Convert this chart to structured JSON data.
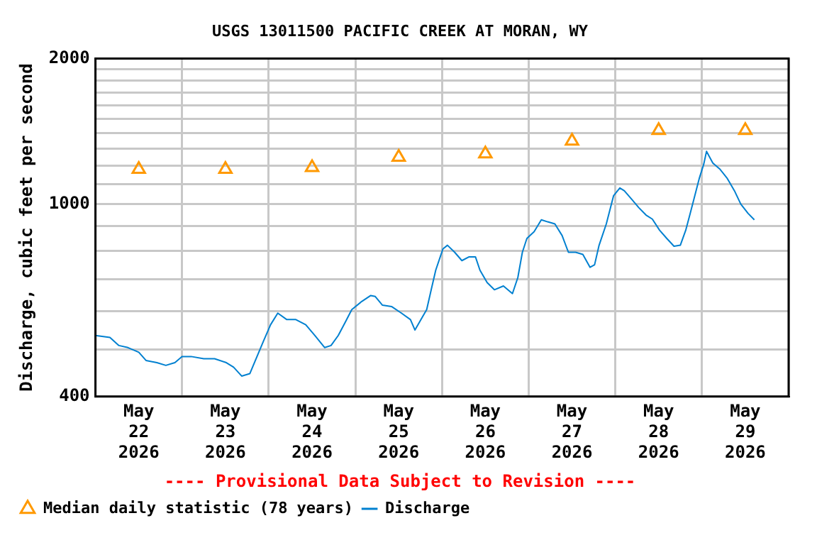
{
  "chart_data": {
    "type": "line",
    "title": "USGS 13011500 PACIFIC CREEK AT MORAN, WY",
    "ylabel": "Discharge, cubic feet per second",
    "annotations": [
      "---- Provisional Data Subject to Revision ----"
    ],
    "log": true,
    "grid": true,
    "legend": "bottom",
    "xlim": [
      "2026-05-22",
      "2026-05-30"
    ],
    "xticks": [
      {
        "value": "2026-05-22",
        "label": null
      },
      {
        "value": "2026-05-22T12:00",
        "label": "May 22 2026"
      },
      {
        "value": "2026-05-23",
        "label": null
      },
      {
        "value": "2026-05-23T12:00",
        "label": "May 23 2026"
      },
      {
        "value": "2026-05-24",
        "label": null
      },
      {
        "value": "2026-05-24T12:00",
        "label": "May 24 2026"
      },
      {
        "value": "2026-05-25",
        "label": null
      },
      {
        "value": "2026-05-25T12:00",
        "label": "May 25 2026"
      },
      {
        "value": "2026-05-26",
        "label": null
      },
      {
        "value": "2026-05-26T12:00",
        "label": "May 26 2026"
      },
      {
        "value": "2026-05-27",
        "label": null
      },
      {
        "value": "2026-05-27T12:00",
        "label": "May 27 2026"
      },
      {
        "value": "2026-05-28",
        "label": null
      },
      {
        "value": "2026-05-28T12:00",
        "label": "May 28 2026"
      },
      {
        "value": "2026-05-29",
        "label": null
      },
      {
        "value": "2026-05-29T12:00",
        "label": "May 29 2026"
      },
      {
        "value": "2026-05-30",
        "label": null
      }
    ],
    "ylim": [
      400,
      2000
    ],
    "yticks": [
      400,
      {
        "value": 500,
        "label": null
      },
      {
        "value": 600,
        "label": null
      },
      {
        "value": 700,
        "label": null
      },
      {
        "value": 800,
        "label": null
      },
      {
        "value": 900,
        "label": null
      },
      1000,
      {
        "value": 1100,
        "label": null
      },
      {
        "value": 1200,
        "label": null
      },
      {
        "value": 1300,
        "label": null
      },
      {
        "value": 1400,
        "label": null
      },
      {
        "value": 1500,
        "label": null
      },
      {
        "value": 1600,
        "label": null
      },
      {
        "value": 1700,
        "label": null
      },
      {
        "value": 1800,
        "label": null
      },
      {
        "value": 1900,
        "label": null
      },
      2000
    ],
    "series": [
      {
        "name": "Median daily statistic (78 years)",
        "type": "scatter",
        "marker": "triangle",
        "color": "#ff9900",
        "x": [
          "2026-05-22T12:00",
          "2026-05-23T12:00",
          "2026-05-24T12:00",
          "2026-05-25T12:00",
          "2026-05-26T12:00",
          "2026-05-27T12:00",
          "2026-05-28T12:00",
          "2026-05-29T12:00"
        ],
        "values": [
          1180,
          1180,
          1190,
          1250,
          1270,
          1350,
          1420,
          1420
        ]
      },
      {
        "name": "Discharge",
        "marker": "none",
        "color": "#0080d0",
        "x": [
          "2026-05-22T00:00",
          "2026-05-22T04:00",
          "2026-05-22T06:30",
          "2026-05-22T09:00",
          "2026-05-22T12:00",
          "2026-05-22T14:00",
          "2026-05-22T17:00",
          "2026-05-22T19:30",
          "2026-05-22T22:00",
          "2026-05-23T00:00",
          "2026-05-23T02:30",
          "2026-05-23T06:00",
          "2026-05-23T09:00",
          "2026-05-23T12:15",
          "2026-05-23T14:15",
          "2026-05-23T16:30",
          "2026-05-23T18:45",
          "2026-05-23T20:45",
          "2026-05-23T22:30",
          "2026-05-24T00:30",
          "2026-05-24T02:30",
          "2026-05-24T05:00",
          "2026-05-24T07:30",
          "2026-05-24T10:15",
          "2026-05-24T12:45",
          "2026-05-24T15:30",
          "2026-05-24T17:15",
          "2026-05-24T19:15",
          "2026-05-24T21:15",
          "2026-05-24T23:00",
          "2026-05-25T01:45",
          "2026-05-25T04:15",
          "2026-05-25T05:30",
          "2026-05-25T07:30",
          "2026-05-25T10:00",
          "2026-05-25T12:45",
          "2026-05-25T15:15",
          "2026-05-25T16:30",
          "2026-05-25T18:30",
          "2026-05-25T19:45",
          "2026-05-25T21:00",
          "2026-05-25T22:15",
          "2026-05-26T00:15",
          "2026-05-26T01:30",
          "2026-05-26T03:30",
          "2026-05-26T05:30",
          "2026-05-26T07:30",
          "2026-05-26T09:15",
          "2026-05-26T10:30",
          "2026-05-26T12:30",
          "2026-05-26T14:30",
          "2026-05-26T17:00",
          "2026-05-26T19:30",
          "2026-05-26T21:00",
          "2026-05-26T22:15",
          "2026-05-26T23:30",
          "2026-05-27T01:30",
          "2026-05-27T03:30",
          "2026-05-27T05:15",
          "2026-05-27T07:15",
          "2026-05-27T09:15",
          "2026-05-27T11:00",
          "2026-05-27T13:00",
          "2026-05-27T15:00",
          "2026-05-27T17:00",
          "2026-05-27T18:15",
          "2026-05-27T19:30",
          "2026-05-27T21:30",
          "2026-05-27T23:30",
          "2026-05-28T01:15",
          "2026-05-28T02:30",
          "2026-05-28T04:30",
          "2026-05-28T06:30",
          "2026-05-28T08:30",
          "2026-05-28T10:15",
          "2026-05-28T12:15",
          "2026-05-28T14:15",
          "2026-05-28T16:15",
          "2026-05-28T18:00",
          "2026-05-28T19:30",
          "2026-05-28T20:45",
          "2026-05-28T22:00",
          "2026-05-28T23:15",
          "2026-05-29T00:30",
          "2026-05-29T01:15",
          "2026-05-29T03:00",
          "2026-05-29T05:00",
          "2026-05-29T07:00",
          "2026-05-29T09:00",
          "2026-05-29T10:45",
          "2026-05-29T12:45",
          "2026-05-29T14:30"
        ],
        "values": [
          535,
          530,
          510,
          505,
          494,
          475,
          470,
          464,
          470,
          484,
          484,
          479,
          479,
          470,
          460,
          441,
          446,
          484,
          520,
          563,
          595,
          577,
          577,
          563,
          535,
          505,
          510,
          535,
          571,
          605,
          629,
          647,
          644,
          618,
          614,
          595,
          577,
          549,
          583,
          605,
          665,
          730,
          808,
          822,
          795,
          764,
          778,
          778,
          730,
          688,
          665,
          677,
          653,
          705,
          795,
          849,
          877,
          928,
          919,
          910,
          861,
          795,
          795,
          787,
          740,
          749,
          822,
          910,
          1040,
          1080,
          1065,
          1024,
          983,
          949,
          931,
          883,
          849,
          818,
          822,
          883,
          957,
          1040,
          1130,
          1210,
          1285,
          1216,
          1180,
          1130,
          1065,
          1000,
          957,
          928
        ]
      }
    ]
  }
}
